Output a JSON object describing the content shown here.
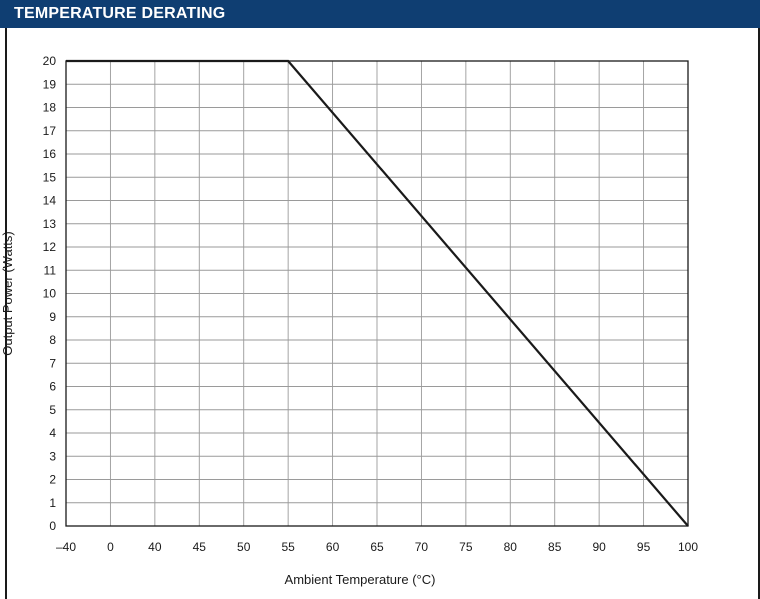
{
  "header": {
    "title": "TEMPERATURE DERATING"
  },
  "chart_data": {
    "type": "line",
    "title": "TEMPERATURE DERATING",
    "xlabel": "Ambient Temperature (°C)",
    "ylabel": "Output Power (Watts)",
    "x_tick_labels": [
      "–40",
      "0",
      "40",
      "45",
      "50",
      "55",
      "60",
      "65",
      "70",
      "75",
      "80",
      "85",
      "90",
      "95",
      "100"
    ],
    "y_ticks": [
      0,
      1,
      2,
      3,
      4,
      5,
      6,
      7,
      8,
      9,
      10,
      11,
      12,
      13,
      14,
      15,
      16,
      17,
      18,
      19,
      20
    ],
    "ylim": [
      0,
      20
    ],
    "grid": true,
    "series": [
      {
        "x": [
          -40,
          55,
          100
        ],
        "y": [
          20,
          20,
          0
        ],
        "color": "#1a1a1a"
      }
    ]
  }
}
